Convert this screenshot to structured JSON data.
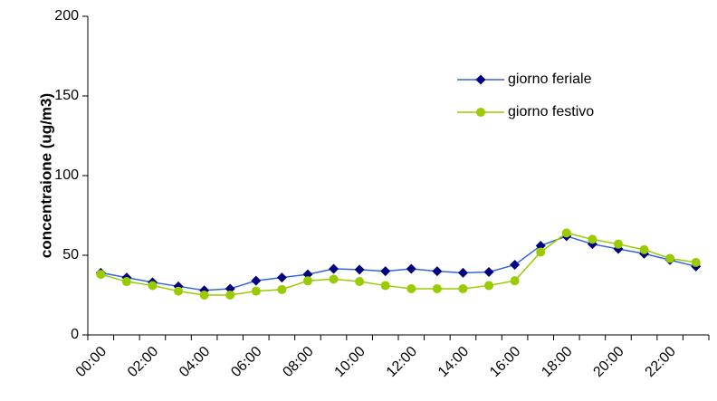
{
  "chart_data": {
    "type": "line",
    "y_label": "concentraione (ug/m3)",
    "categories": [
      "00:00",
      null,
      "02:00",
      null,
      "04:00",
      null,
      "06:00",
      null,
      "08:00",
      null,
      "10:00",
      null,
      "12:00",
      null,
      "14:00",
      null,
      "16:00",
      null,
      "18:00",
      null,
      "20:00",
      null,
      "22:00",
      null
    ],
    "series": [
      {
        "name": "giorno feriale",
        "color": "#3366dd",
        "marker_color": "#000080",
        "marker": "diamond",
        "values": [
          39,
          36,
          33,
          30.5,
          28,
          29,
          34,
          36,
          38,
          41.5,
          41,
          40,
          41.5,
          40,
          39,
          39.5,
          44,
          56,
          62,
          57,
          54,
          51,
          47,
          43
        ]
      },
      {
        "name": "giorno festivo",
        "color": "#99cc00",
        "marker_color": "#99cc00",
        "marker": "circle",
        "values": [
          38,
          33.5,
          31,
          27.5,
          25,
          25,
          27.5,
          28.5,
          34,
          35,
          33.5,
          31,
          29,
          29,
          29,
          31,
          34,
          52,
          64,
          60,
          57,
          53.5,
          48,
          45.5
        ]
      }
    ],
    "ylim": [
      0,
      200
    ],
    "yticks": [
      0,
      50,
      100,
      150,
      200
    ],
    "grid": false
  }
}
